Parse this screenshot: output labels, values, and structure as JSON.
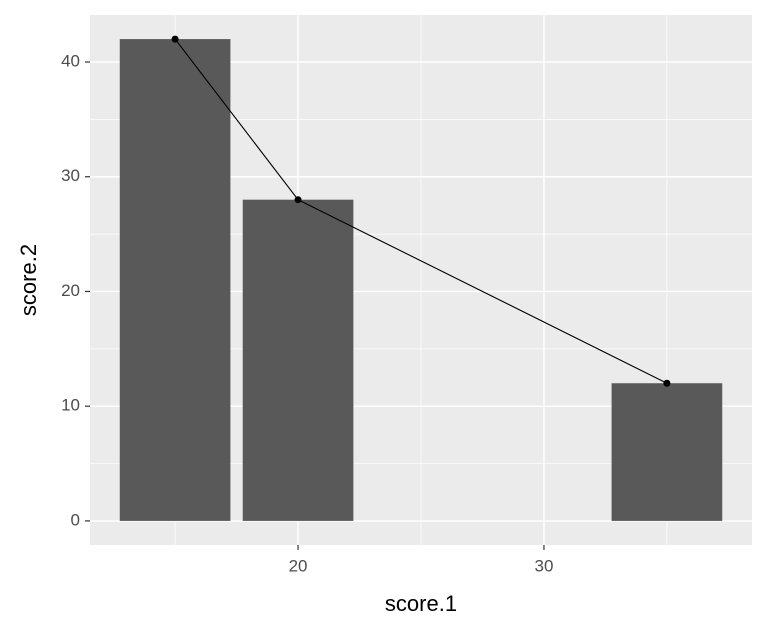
{
  "chart_data": {
    "type": "bar",
    "line_overlay": true,
    "x_label": "score.1",
    "y_label": "score.2",
    "x": [
      15,
      20,
      35
    ],
    "values": [
      42,
      28,
      12
    ],
    "color": "#595959",
    "line_color": "#000000",
    "xlim": [
      11.54,
      38.46
    ],
    "xticks": [
      20,
      30
    ],
    "ylim": [
      -2.1,
      44.1
    ],
    "yticks": [
      0,
      10,
      20,
      30,
      40
    ],
    "grid": true
  }
}
